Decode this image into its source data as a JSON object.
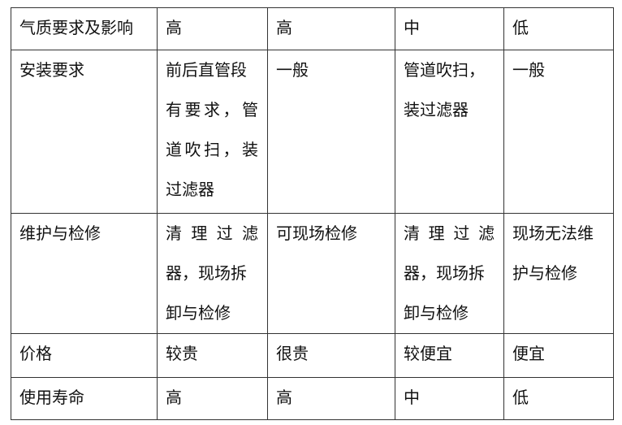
{
  "table": {
    "rows": [
      {
        "cells": [
          {
            "lines": [
              {
                "t": "气质要求及影响"
              }
            ]
          },
          {
            "lines": [
              {
                "t": "高"
              }
            ]
          },
          {
            "lines": [
              {
                "t": "高"
              }
            ]
          },
          {
            "lines": [
              {
                "t": "中"
              }
            ]
          },
          {
            "lines": [
              {
                "t": "低"
              }
            ]
          }
        ]
      },
      {
        "cells": [
          {
            "lines": [
              {
                "t": "安装要求"
              }
            ]
          },
          {
            "lines": [
              {
                "t": "前后直管段"
              },
              {
                "t": "有要求，管",
                "j": true
              },
              {
                "t": "道吹扫，装",
                "j": true
              },
              {
                "t": "过滤器"
              }
            ]
          },
          {
            "lines": [
              {
                "t": "一般"
              }
            ]
          },
          {
            "lines": [
              {
                "t": "管道吹扫，"
              },
              {
                "t": "装过滤器"
              }
            ]
          },
          {
            "lines": [
              {
                "t": "一般"
              }
            ]
          }
        ]
      },
      {
        "cells": [
          {
            "lines": [
              {
                "t": "维护与检修"
              }
            ]
          },
          {
            "lines": [
              {
                "t": "清理过滤",
                "j": true
              },
              {
                "t": "器，现场拆"
              },
              {
                "t": "卸与检修"
              }
            ]
          },
          {
            "lines": [
              {
                "t": "可现场检修"
              }
            ]
          },
          {
            "lines": [
              {
                "t": "清理过滤",
                "j": true
              },
              {
                "t": "器，现场拆"
              },
              {
                "t": "卸与检修"
              }
            ]
          },
          {
            "lines": [
              {
                "t": "现场无法维"
              },
              {
                "t": "护与检修"
              }
            ]
          }
        ]
      },
      {
        "cells": [
          {
            "lines": [
              {
                "t": "价格"
              }
            ]
          },
          {
            "lines": [
              {
                "t": "较贵"
              }
            ]
          },
          {
            "lines": [
              {
                "t": "很贵"
              }
            ]
          },
          {
            "lines": [
              {
                "t": "较便宜"
              }
            ]
          },
          {
            "lines": [
              {
                "t": "便宜"
              }
            ]
          }
        ]
      },
      {
        "cells": [
          {
            "lines": [
              {
                "t": "使用寿命"
              }
            ]
          },
          {
            "lines": [
              {
                "t": "高"
              }
            ]
          },
          {
            "lines": [
              {
                "t": "高"
              }
            ]
          },
          {
            "lines": [
              {
                "t": "中"
              }
            ]
          },
          {
            "lines": [
              {
                "t": "低"
              }
            ]
          }
        ]
      }
    ]
  }
}
